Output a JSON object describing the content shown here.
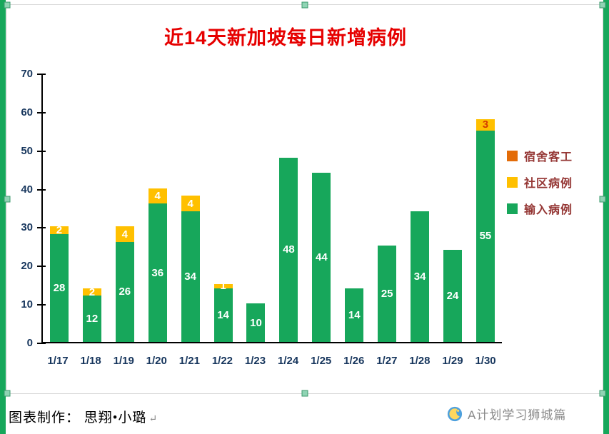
{
  "page": {
    "edge_strip_color": "#17a75b",
    "selection_handle_color": "#8fd4b4"
  },
  "chart_data": {
    "type": "bar",
    "stacked": true,
    "title": "近14天新加坡每日新增病例",
    "title_color": "#e60000",
    "categories": [
      "1/17",
      "1/18",
      "1/19",
      "1/20",
      "1/21",
      "1/22",
      "1/23",
      "1/24",
      "1/25",
      "1/26",
      "1/27",
      "1/28",
      "1/29",
      "1/30"
    ],
    "series": [
      {
        "name": "宿舍客工",
        "color": "#e36c09",
        "values": [
          0,
          0,
          0,
          0,
          0,
          0,
          0,
          0,
          0,
          0,
          0,
          0,
          0,
          0
        ]
      },
      {
        "name": "社区病例",
        "color": "#ffc000",
        "values": [
          2,
          2,
          4,
          4,
          4,
          1,
          0,
          0,
          0,
          0,
          0,
          0,
          0,
          3
        ],
        "label_colors": [
          "#ffffff",
          "#ffffff",
          "#ffffff",
          "#ffffff",
          "#ffffff",
          "#ffffff",
          "",
          "",
          "",
          "",
          "",
          "",
          "",
          "#d43b00"
        ]
      },
      {
        "name": "输入病例",
        "color": "#17a75b",
        "values": [
          28,
          12,
          26,
          36,
          34,
          14,
          10,
          48,
          44,
          14,
          25,
          34,
          24,
          55
        ]
      }
    ],
    "ylim": [
      0,
      70
    ],
    "ytick_step": 10,
    "yticks": [
      0,
      10,
      20,
      30,
      40,
      50,
      60,
      70
    ],
    "grid": false,
    "legend_position": "right",
    "axis_text_color": "#17365d",
    "legend_text_color": "#953735",
    "value_label_color": "#ffffff"
  },
  "footer": {
    "credit": "图表制作： 思翔•小璐",
    "paragraph_mark": "↵",
    "watermark": "A计划学习狮城篇"
  }
}
